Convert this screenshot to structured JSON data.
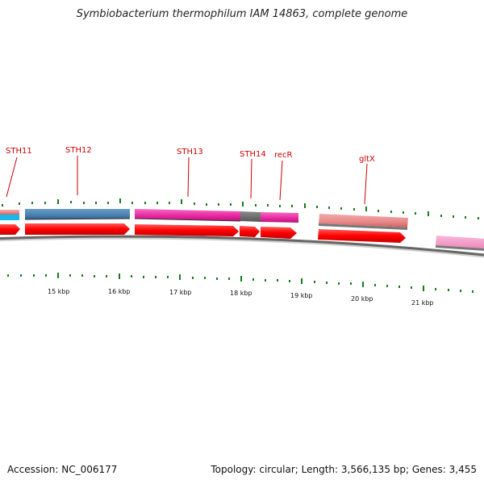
{
  "title": "Symbiobacterium thermophilum IAM 14863, complete genome",
  "footer": {
    "accession": "Accession: NC_006177",
    "topology": "Topology: circular; Length: 3,566,135 bp; Genes: 3,455"
  },
  "gene_labels": [
    "STH11",
    "STH12",
    "STH13",
    "STH14",
    "recR",
    "gltX"
  ],
  "kbp_labels": [
    "15 kbp",
    "16 kbp",
    "17 kbp",
    "18 kbp",
    "19 kbp",
    "20 kbp",
    "21 kbp"
  ],
  "colors": {
    "gene_label": "#cc0000",
    "cds_arrow": "#ff1a1a",
    "steelblue": "#4a7fb0",
    "magenta": "#e8249e",
    "salmon": "#e98888",
    "gray": "#6b6b6b",
    "pink": "#f49ac8",
    "cyan": "#16b8e8",
    "tick": "#1a7a1a",
    "backbone": "#6e6e6e"
  }
}
